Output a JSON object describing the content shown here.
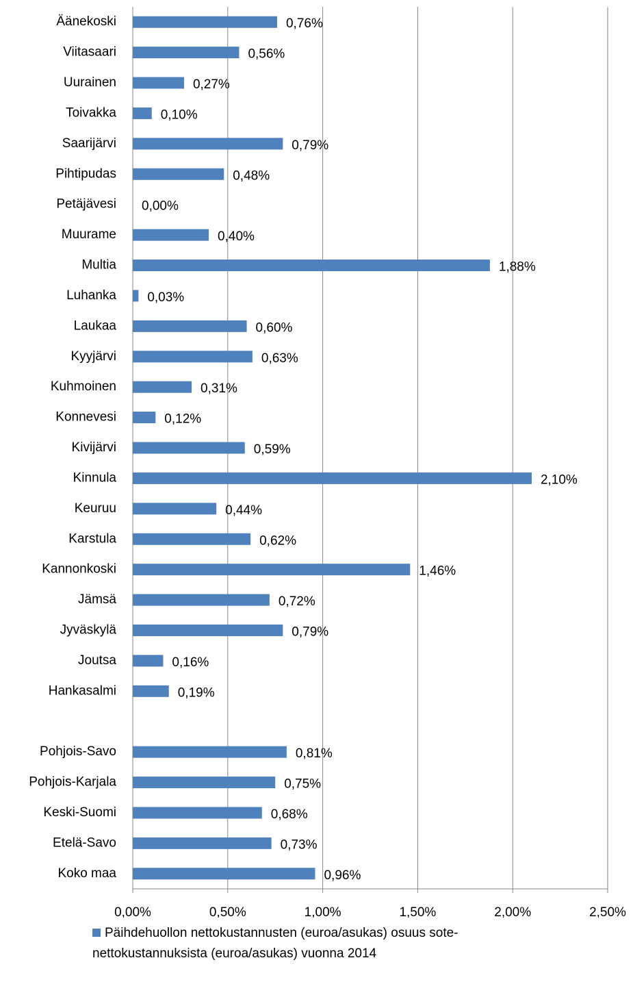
{
  "chart_data": {
    "type": "bar",
    "orientation": "horizontal",
    "categories": [
      "Äänekoski",
      "Viitasaari",
      "Uurainen",
      "Toivakka",
      "Saarijärvi",
      "Pihtipudas",
      "Petäjävesi",
      "Muurame",
      "Multia",
      "Luhanka",
      "Laukaa",
      "Kyyjärvi",
      "Kuhmoinen",
      "Konnevesi",
      "Kivijärvi",
      "Kinnula",
      "Keuruu",
      "Karstula",
      "Kannonkoski",
      "Jämsä",
      "Jyväskylä",
      "Joutsa",
      "Hankasalmi",
      null,
      "Pohjois-Savo",
      "Pohjois-Karjala",
      "Keski-Suomi",
      "Etelä-Savo",
      "Koko maa"
    ],
    "series": [
      {
        "name": "Päihdehuollon nettokustannusten (euroa/asukas) osuus sote-nettokustannuksista (euroa/asukas) vuonna 2014",
        "color": "#4f81bd",
        "values": [
          0.76,
          0.56,
          0.27,
          0.1,
          0.79,
          0.48,
          0.0,
          0.4,
          1.88,
          0.03,
          0.6,
          0.63,
          0.31,
          0.12,
          0.59,
          2.1,
          0.44,
          0.62,
          1.46,
          0.72,
          0.79,
          0.16,
          0.19,
          null,
          0.81,
          0.75,
          0.68,
          0.73,
          0.96
        ],
        "value_labels": [
          "0,76%",
          "0,56%",
          "0,27%",
          "0,10%",
          "0,79%",
          "0,48%",
          "0,00%",
          "0,40%",
          "1,88%",
          "0,03%",
          "0,60%",
          "0,63%",
          "0,31%",
          "0,12%",
          "0,59%",
          "2,10%",
          "0,44%",
          "0,62%",
          "1,46%",
          "0,72%",
          "0,79%",
          "0,16%",
          "0,19%",
          null,
          "0,81%",
          "0,75%",
          "0,68%",
          "0,73%",
          "0,96%"
        ]
      }
    ],
    "xlim": [
      0,
      2.5
    ],
    "xticks": [
      {
        "value": 0,
        "label": "0,00%"
      },
      {
        "value": 0.5,
        "label": "0,50%"
      },
      {
        "value": 1,
        "label": "1,00%"
      },
      {
        "value": 1.5,
        "label": "1,50%"
      },
      {
        "value": 2,
        "label": "2,00%"
      },
      {
        "value": 2.5,
        "label": "2,50%"
      }
    ],
    "grid": true,
    "legend": "bottom"
  }
}
